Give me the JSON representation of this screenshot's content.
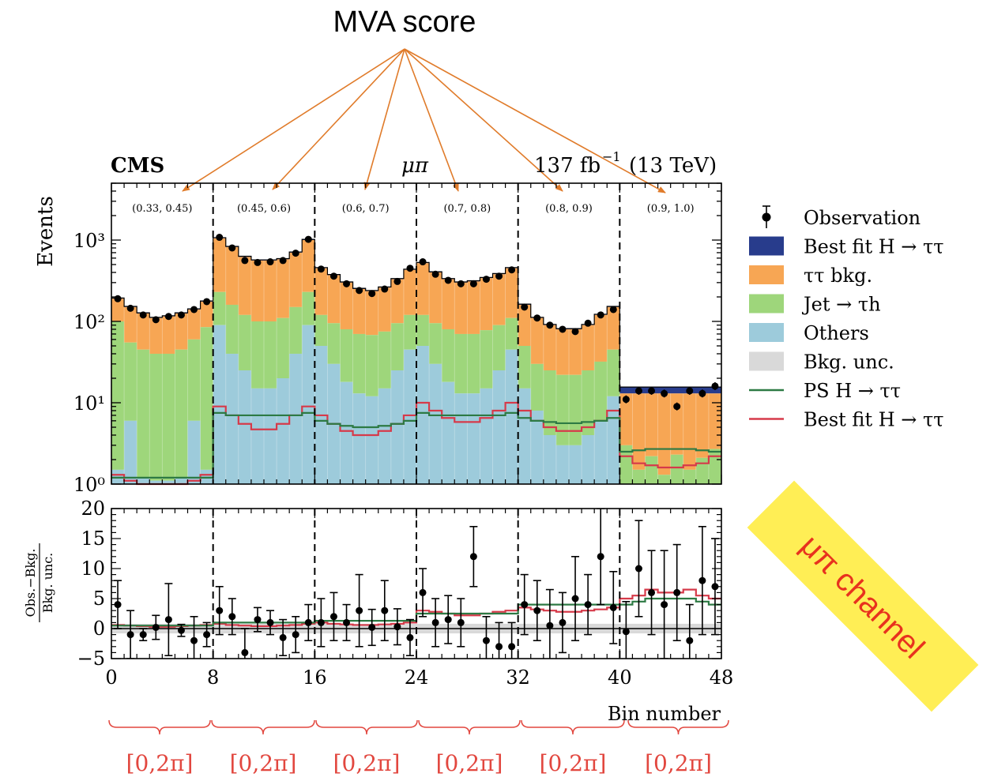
{
  "annotation": {
    "mva_label": "MVA score",
    "channel_label": "μπ channel",
    "phi_range_label": "[0,2π]",
    "arrow_color": "#e07b2a",
    "channel_box_color": "#ffee55",
    "channel_text_color": "#e8321e",
    "brace_color": "#e2473f"
  },
  "header": {
    "experiment": "CMS",
    "channel": "μπ",
    "lumi_value": "137 fb",
    "lumi_exp": "−1",
    "energy": "(13 TeV)"
  },
  "chart_data": [
    {
      "type": "bar",
      "stacked": true,
      "y_scale": "log",
      "ylabel": "Events",
      "ylim": [
        1,
        5000
      ],
      "xlim": [
        0,
        48
      ],
      "ytick_labels": [
        "10⁰",
        "10¹",
        "10²",
        "10³"
      ],
      "dividers": [
        8,
        16,
        24,
        32,
        40
      ],
      "mva_bins": [
        "(0.33, 0.45)",
        "(0.45, 0.6)",
        "(0.6, 0.7)",
        "(0.7, 0.8)",
        "(0.8, 0.9)",
        "(0.9, 1.0)"
      ],
      "colors": {
        "signal": "#283c8c",
        "tautau": "#f7a654",
        "jet": "#9ed67b",
        "others": "#9dcbdb",
        "ps": "#2d7a44",
        "bestfit_line": "#d63a4a",
        "unc": "#d9d9d9"
      },
      "legend": [
        {
          "label": "Observation",
          "kind": "point"
        },
        {
          "label": "Best fit H → ττ",
          "kind": "fill",
          "color": "#283c8c"
        },
        {
          "label": "ττ bkg.",
          "kind": "fill",
          "color": "#f7a654"
        },
        {
          "label": "Jet → τh",
          "kind": "fill",
          "color": "#9ed67b"
        },
        {
          "label": "Others",
          "kind": "fill",
          "color": "#9dcbdb"
        },
        {
          "label": "Bkg. unc.",
          "kind": "fill",
          "color": "#d9d9d9"
        },
        {
          "label": "PS H → ττ",
          "kind": "line",
          "color": "#2d7a44"
        },
        {
          "label": "Best fit H → ττ",
          "kind": "line",
          "color": "#d63a4a"
        }
      ],
      "series": {
        "total": [
          190,
          150,
          125,
          110,
          115,
          125,
          140,
          175,
          1050,
          820,
          620,
          560,
          560,
          580,
          700,
          1000,
          450,
          370,
          300,
          250,
          235,
          260,
          330,
          430,
          520,
          400,
          330,
          300,
          310,
          340,
          380,
          450,
          160,
          110,
          90,
          80,
          80,
          90,
          120,
          150,
          13,
          13,
          13,
          13,
          13,
          13,
          13,
          13
        ],
        "jet_top": [
          100,
          55,
          45,
          40,
          40,
          45,
          60,
          85,
          230,
          160,
          120,
          100,
          100,
          110,
          150,
          230,
          120,
          95,
          80,
          70,
          68,
          75,
          95,
          120,
          120,
          95,
          80,
          70,
          70,
          78,
          90,
          110,
          50,
          30,
          25,
          22,
          22,
          25,
          32,
          45,
          3,
          1.5,
          2.2,
          1.3,
          2.3,
          1.5,
          2.1,
          2.7
        ],
        "others_top": [
          1.5,
          6,
          1.2,
          1.1,
          1.1,
          1.2,
          6,
          1.5,
          90,
          40,
          25,
          15,
          15,
          20,
          40,
          90,
          50,
          30,
          18,
          13,
          12,
          15,
          25,
          45,
          50,
          30,
          18,
          13,
          13,
          15,
          25,
          45,
          15,
          8,
          4,
          3,
          3,
          4,
          6,
          12,
          1,
          1,
          1,
          1,
          1,
          1,
          1,
          1
        ],
        "ps_line": [
          1.2,
          1.2,
          1.2,
          1.2,
          1.2,
          1.2,
          1.2,
          1.2,
          7.5,
          7,
          7,
          7,
          7,
          7,
          7,
          7.5,
          6,
          5.5,
          5.2,
          5,
          5,
          5.2,
          5.5,
          6,
          7.5,
          7,
          7,
          7,
          7,
          7,
          7,
          7.5,
          6.5,
          6,
          5.8,
          5.6,
          5.6,
          5.8,
          6,
          6.5,
          2.5,
          2.6,
          2.7,
          2.7,
          2.7,
          2.7,
          2.6,
          2.5
        ],
        "bestfit_line": [
          1.3,
          1.1,
          1.0,
          1.0,
          1.0,
          1.0,
          1.1,
          1.3,
          9,
          7,
          5.5,
          4.7,
          4.7,
          5.5,
          7,
          9,
          7,
          5.5,
          4.5,
          4,
          4,
          4.5,
          5.5,
          7,
          10,
          8,
          6.5,
          5.8,
          5.8,
          6.5,
          8,
          10,
          8,
          6,
          5,
          4.5,
          4.5,
          5,
          6,
          8,
          2.2,
          1.8,
          1.7,
          1.6,
          1.6,
          1.7,
          1.8,
          2.2
        ],
        "observed": [
          190,
          145,
          120,
          105,
          115,
          120,
          140,
          175,
          1080,
          800,
          560,
          530,
          540,
          560,
          690,
          1020,
          440,
          360,
          290,
          240,
          220,
          250,
          310,
          450,
          540,
          380,
          320,
          290,
          290,
          330,
          360,
          430,
          150,
          110,
          90,
          80,
          75,
          95,
          120,
          140,
          11,
          14,
          14,
          13,
          9,
          14,
          13,
          16
        ]
      }
    },
    {
      "type": "scatter",
      "ylabel": "(Obs. − Bkg.) / Bkg. unc.",
      "ylabel_num": "Obs.−Bkg.",
      "ylabel_den": "Bkg. unc.",
      "xlabel": "Bin number",
      "xlim": [
        0,
        48
      ],
      "ylim": [
        -5,
        20
      ],
      "xticks": [
        0,
        8,
        16,
        24,
        32,
        40,
        48
      ],
      "yticks": [
        -5,
        0,
        5,
        10,
        15,
        20
      ],
      "y": [
        4,
        -1,
        -1,
        0.2,
        1.5,
        -0.3,
        -2,
        -1,
        3,
        2,
        -4,
        1.5,
        1,
        -1.5,
        -1,
        1,
        1,
        2,
        1,
        3,
        0.2,
        3,
        0.3,
        -1.5,
        6,
        1,
        1.5,
        1,
        12,
        -2,
        -3,
        -3,
        4,
        3,
        0.5,
        1,
        5,
        4,
        12,
        3.5,
        -0.5,
        10,
        6,
        4,
        6,
        -2,
        8,
        7
      ],
      "err": [
        4,
        4,
        1,
        2,
        6,
        1,
        4,
        2,
        4,
        3,
        4,
        2,
        2,
        3,
        3,
        3,
        4,
        4,
        3,
        6,
        3,
        5,
        3,
        3,
        4,
        4,
        4,
        4,
        5,
        4,
        4,
        4,
        5,
        5,
        6,
        5,
        7,
        5,
        8,
        6,
        5,
        8,
        7,
        9,
        8,
        6,
        9,
        8
      ],
      "ps_ratio": [
        0.5,
        0.5,
        0.5,
        0.5,
        0.5,
        0.5,
        0.5,
        0.5,
        1,
        1,
        1,
        1,
        1,
        1,
        1,
        1,
        1.3,
        1.3,
        1.3,
        1.3,
        1.3,
        1.3,
        1.3,
        1.3,
        2.5,
        2.5,
        2.5,
        2.5,
        2.5,
        2.5,
        2.5,
        2.5,
        4,
        4,
        4,
        4,
        4,
        4,
        4,
        4,
        4,
        4.5,
        5,
        5,
        5,
        5,
        4.5,
        4
      ],
      "bestfit_ratio": [
        0.6,
        0.5,
        0.4,
        0.3,
        0.3,
        0.4,
        0.5,
        0.6,
        0.8,
        0.6,
        0.5,
        0.4,
        0.4,
        0.5,
        0.6,
        0.8,
        1,
        0.8,
        0.7,
        0.6,
        0.6,
        0.7,
        0.8,
        1,
        3,
        2.8,
        2.5,
        2.2,
        2.2,
        2.5,
        2.8,
        3,
        3.5,
        3.2,
        3,
        2.8,
        2.8,
        3,
        3.2,
        3.5,
        5,
        5.5,
        6.5,
        6,
        6,
        6.5,
        5.5,
        5
      ]
    }
  ]
}
